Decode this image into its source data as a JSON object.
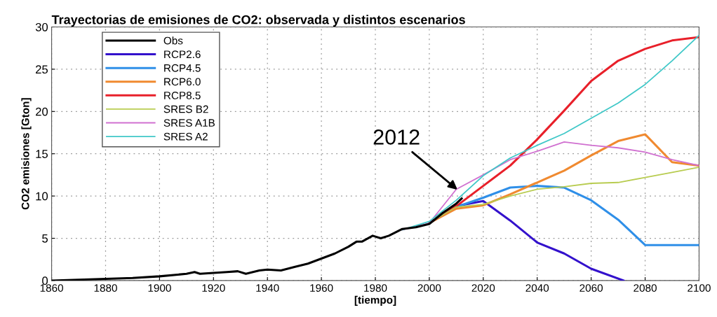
{
  "chart_data": {
    "type": "line",
    "title": "Trayectorias de emisiones de CO2: observada y distintos escenarios",
    "xlabel": "[tiempo]",
    "ylabel": "CO2 emisiones [Gton]",
    "xlim": [
      1860,
      2100
    ],
    "xticks": [
      1860,
      1880,
      1900,
      1920,
      1940,
      1960,
      1980,
      2000,
      2020,
      2040,
      2060,
      2080,
      2100
    ],
    "ylim": [
      0,
      30
    ],
    "yticks": [
      0,
      5,
      10,
      15,
      20,
      25,
      30
    ],
    "grid": true,
    "legend": "top left",
    "line_style": "solid",
    "annotations": [
      {
        "text": "2012",
        "x": 2011,
        "y": 10.6
      }
    ],
    "series": [
      {
        "name": "Obs",
        "color": "#000000",
        "x": [
          1860,
          1880,
          1890,
          1900,
          1910,
          1913,
          1915,
          1920,
          1925,
          1929,
          1932,
          1937,
          1940,
          1945,
          1950,
          1955,
          1960,
          1965,
          1970,
          1973,
          1975,
          1979,
          1982,
          1985,
          1990,
          1995,
          2000,
          2005,
          2010,
          2012
        ],
        "values": [
          0,
          0.2,
          0.3,
          0.5,
          0.8,
          1.0,
          0.8,
          0.9,
          1.0,
          1.1,
          0.8,
          1.2,
          1.3,
          1.2,
          1.6,
          2.0,
          2.6,
          3.2,
          4.0,
          4.6,
          4.6,
          5.3,
          5.0,
          5.3,
          6.1,
          6.3,
          6.7,
          8.0,
          9.1,
          9.7
        ]
      },
      {
        "name": "RCP2.6",
        "color": "#3311cc",
        "x": [
          2000,
          2010,
          2020,
          2030,
          2040,
          2050,
          2060,
          2072
        ],
        "values": [
          6.8,
          8.8,
          9.4,
          7.1,
          4.5,
          3.2,
          1.4,
          0
        ]
      },
      {
        "name": "RCP4.5",
        "color": "#2f8fe8",
        "x": [
          2000,
          2010,
          2020,
          2030,
          2040,
          2050,
          2060,
          2070,
          2080,
          2100
        ],
        "values": [
          6.8,
          8.7,
          9.8,
          11.0,
          11.2,
          11.0,
          9.5,
          7.2,
          4.2,
          4.2
        ]
      },
      {
        "name": "RCP6.0",
        "color": "#f08a30",
        "x": [
          2000,
          2010,
          2020,
          2030,
          2040,
          2050,
          2060,
          2070,
          2080,
          2090,
          2100
        ],
        "values": [
          6.8,
          8.5,
          8.9,
          10.2,
          11.6,
          13.0,
          14.8,
          16.5,
          17.3,
          14.0,
          13.6
        ]
      },
      {
        "name": "RCP8.5",
        "color": "#e8202a",
        "x": [
          2000,
          2010,
          2020,
          2030,
          2040,
          2050,
          2060,
          2070,
          2080,
          2090,
          2100
        ],
        "values": [
          6.8,
          8.8,
          11.2,
          13.6,
          16.7,
          20.1,
          23.6,
          26.0,
          27.4,
          28.4,
          28.8
        ]
      },
      {
        "name": "SRES B2",
        "color": "#b8cc50",
        "x": [
          2000,
          2010,
          2020,
          2030,
          2040,
          2050,
          2060,
          2070,
          2080,
          2090,
          2100
        ],
        "values": [
          6.8,
          8.7,
          9.0,
          10.0,
          10.8,
          11.1,
          11.5,
          11.6,
          12.2,
          12.8,
          13.4
        ]
      },
      {
        "name": "SRES A1B",
        "color": "#d070d0",
        "x": [
          1990,
          2000,
          2010,
          2020,
          2030,
          2040,
          2050,
          2060,
          2070,
          2080,
          2090,
          2100
        ],
        "values": [
          6.0,
          6.8,
          10.8,
          12.5,
          14.3,
          15.3,
          16.4,
          16.0,
          15.7,
          15.2,
          14.3,
          13.6
        ]
      },
      {
        "name": "SRES A2",
        "color": "#40c8c8",
        "x": [
          1990,
          2000,
          2010,
          2020,
          2030,
          2040,
          2050,
          2060,
          2070,
          2080,
          2090,
          2100
        ],
        "values": [
          6.0,
          7.0,
          9.5,
          12.4,
          14.5,
          16.0,
          17.4,
          19.2,
          21.0,
          23.2,
          26.0,
          29.0
        ]
      }
    ]
  }
}
